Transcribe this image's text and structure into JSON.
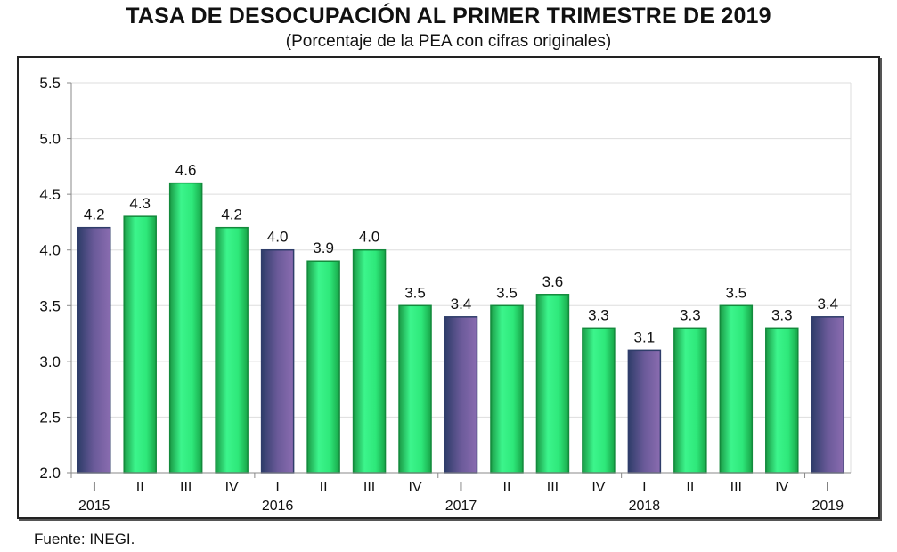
{
  "chart_data": {
    "type": "bar",
    "title": "Tasa de desocupación al primer trimestre de 2019",
    "title_display": "TASA DE DESOCUPACIÓN AL PRIMER TRIMESTRE DE 2019",
    "subtitle": "(Porcentaje de la PEA con cifras originales)",
    "categories": [
      "I",
      "II",
      "III",
      "IV",
      "I",
      "II",
      "III",
      "IV",
      "I",
      "II",
      "III",
      "IV",
      "I",
      "II",
      "III",
      "IV",
      "I"
    ],
    "years": [
      {
        "label": "2015",
        "start": 0,
        "count": 4
      },
      {
        "label": "2016",
        "start": 4,
        "count": 4
      },
      {
        "label": "2017",
        "start": 8,
        "count": 4
      },
      {
        "label": "2018",
        "start": 12,
        "count": 4
      },
      {
        "label": "2019",
        "start": 16,
        "count": 1
      }
    ],
    "values": [
      4.2,
      4.3,
      4.6,
      4.2,
      4.0,
      3.9,
      4.0,
      3.5,
      3.4,
      3.5,
      3.6,
      3.3,
      3.1,
      3.3,
      3.5,
      3.3,
      3.4
    ],
    "value_labels": [
      "4.2",
      "4.3",
      "4.6",
      "4.2",
      "4.0",
      "3.9",
      "4.0",
      "3.5",
      "3.4",
      "3.5",
      "3.6",
      "3.3",
      "3.1",
      "3.3",
      "3.5",
      "3.3",
      "3.4"
    ],
    "ylim": [
      2.0,
      5.5
    ],
    "yticks": [
      "2.0",
      "2.5",
      "3.0",
      "3.5",
      "4.0",
      "4.5",
      "5.0",
      "5.5"
    ],
    "grid": true,
    "xlabel": "",
    "ylabel": "",
    "colors": {
      "first_quarter": "#6a5a99",
      "other_quarters": "#2ee87a",
      "first_quarter_dark": "#2f3d6a",
      "other_dark": "#138a3c"
    }
  },
  "source": "Fuente: INEGI."
}
